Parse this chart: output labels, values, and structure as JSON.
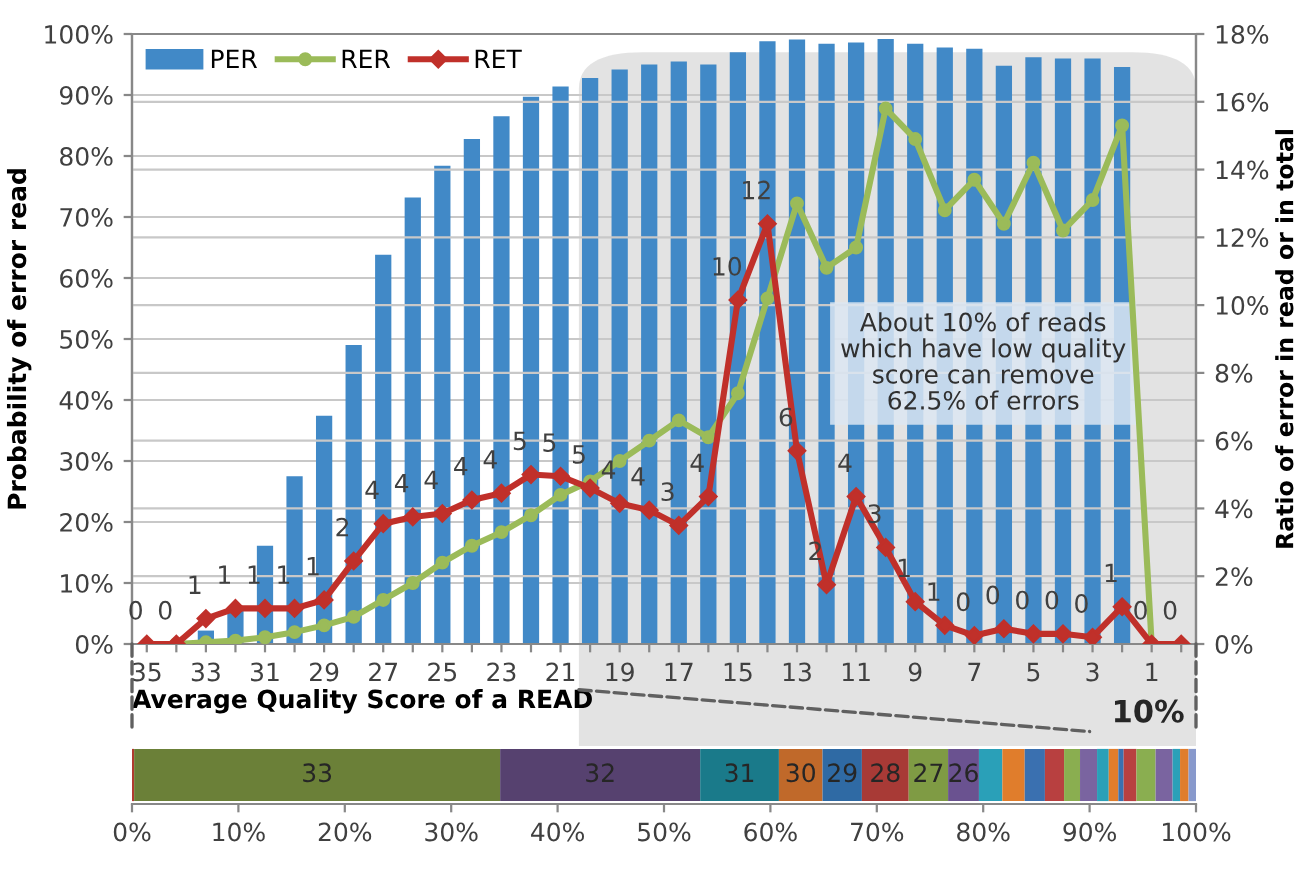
{
  "chart_data": [
    {
      "type": "bar",
      "xlabel": "Average Quality Score of a READ",
      "ylabel": "Probability of error read",
      "y2label": "Ratio of error in read or in total",
      "categories": [
        "35",
        null,
        "33",
        null,
        "31",
        null,
        "29",
        null,
        "27",
        null,
        "25",
        null,
        "23",
        null,
        "21",
        null,
        "19",
        null,
        "17",
        null,
        "15",
        null,
        "13",
        null,
        "11",
        null,
        "9",
        null,
        "7",
        null,
        "5",
        null,
        "3",
        null,
        "1",
        null
      ],
      "series": [
        {
          "name": "PER",
          "type": "bar",
          "color": "#4189c7",
          "values": [
            null,
            null,
            2.2,
            5.4,
            16.1,
            27.5,
            37.4,
            49,
            63.8,
            73.2,
            78.4,
            82.8,
            86.5,
            89.7,
            91.4,
            92.8,
            94.2,
            95.0,
            95.5,
            95.0,
            97.0,
            98.8,
            99.1,
            98.4,
            98.6,
            99.2,
            98.4,
            97.8,
            97.6,
            94.8,
            96.2,
            96.0,
            96.0,
            94.6,
            null,
            null
          ]
        },
        {
          "name": "RER",
          "type": "line",
          "axis": "y2",
          "color": "#9bbb59",
          "marker": "circle",
          "values": [
            null,
            0,
            0.05,
            0.1,
            0.2,
            0.35,
            0.55,
            0.8,
            1.3,
            1.8,
            2.4,
            2.9,
            3.3,
            3.8,
            4.4,
            4.8,
            5.4,
            6.0,
            6.6,
            6.1,
            7.4,
            10.2,
            13.0,
            11.1,
            11.7,
            15.8,
            14.9,
            12.8,
            13.7,
            12.4,
            14.2,
            12.2,
            13.1,
            15.3,
            0,
            null
          ]
        },
        {
          "name": "RET",
          "type": "line",
          "axis": "y2",
          "color": "#c0302a",
          "marker": "diamond",
          "values": [
            0,
            0,
            0.75,
            1.05,
            1.05,
            1.05,
            1.3,
            2.45,
            3.55,
            3.75,
            3.85,
            4.25,
            4.45,
            5.0,
            4.95,
            4.6,
            4.15,
            3.95,
            3.5,
            4.35,
            10.15,
            12.4,
            5.7,
            1.75,
            4.35,
            2.85,
            1.25,
            0.55,
            0.25,
            0.45,
            0.3,
            0.3,
            0.2,
            1.1,
            0,
            0
          ],
          "value_labels": [
            "0",
            "0",
            "1",
            "1",
            "1",
            "1",
            "1",
            "2",
            "4",
            "4",
            "4",
            "4",
            "4",
            "5",
            "5",
            "5",
            "4",
            "4",
            "3",
            "4",
            "10",
            "12",
            "6",
            "2",
            "4",
            "3",
            "1",
            "1",
            "0",
            "0",
            "0",
            "0",
            "0",
            "1",
            "0",
            "0"
          ]
        }
      ],
      "ylim": [
        0,
        100
      ],
      "yticks": [
        {
          "value": 0,
          "label": "0%"
        },
        {
          "value": 10,
          "label": "10%"
        },
        {
          "value": 20,
          "label": "20%"
        },
        {
          "value": 30,
          "label": "30%"
        },
        {
          "value": 40,
          "label": "40%"
        },
        {
          "value": 50,
          "label": "50%"
        },
        {
          "value": 60,
          "label": "60%"
        },
        {
          "value": 70,
          "label": "70%"
        },
        {
          "value": 80,
          "label": "80%"
        },
        {
          "value": 90,
          "label": "90%"
        },
        {
          "value": 100,
          "label": "100%"
        }
      ],
      "y2lim": [
        0,
        18
      ],
      "y2ticks": [
        {
          "value": 0,
          "label": "0%"
        },
        {
          "value": 2,
          "label": "2%"
        },
        {
          "value": 4,
          "label": "4%"
        },
        {
          "value": 6,
          "label": "6%"
        },
        {
          "value": 8,
          "label": "8%"
        },
        {
          "value": 10,
          "label": "10%"
        },
        {
          "value": 12,
          "label": "12%"
        },
        {
          "value": 14,
          "label": "14%"
        },
        {
          "value": 16,
          "label": "16%"
        },
        {
          "value": 18,
          "label": "18%"
        }
      ],
      "grid": "y",
      "legend": "top left",
      "annotations": [
        "About 10% of reads\nwhich have low quality\nscore can remove\n62.5% of errors"
      ]
    },
    {
      "type": "bar",
      "orientation": "horizontal",
      "stacked": true,
      "categories": [
        null
      ],
      "series": [
        {
          "color": "#b03a30",
          "values": [
            0.2
          ]
        },
        {
          "name": "33",
          "color": "#6b8038",
          "values": [
            34.4
          ]
        },
        {
          "name": "32",
          "color": "#56416f",
          "values": [
            18.8
          ]
        },
        {
          "name": "31",
          "color": "#1a7a8a",
          "values": [
            7.4
          ]
        },
        {
          "name": "30",
          "color": "#c0692a",
          "values": [
            4.1
          ]
        },
        {
          "name": "29",
          "color": "#2f6aa4",
          "values": [
            3.7
          ]
        },
        {
          "name": "28",
          "color": "#a83a36",
          "values": [
            4.4
          ]
        },
        {
          "name": "27",
          "color": "#7f9b44",
          "values": [
            3.7
          ]
        },
        {
          "name": "26",
          "color": "#6a5290",
          "values": [
            2.9
          ]
        },
        {
          "color": "#2aa0b8",
          "values": [
            2.2
          ]
        },
        {
          "color": "#e07d2c",
          "values": [
            2.1
          ]
        },
        {
          "color": "#3a70b0",
          "values": [
            1.9
          ]
        },
        {
          "color": "#b84040",
          "values": [
            1.8
          ]
        },
        {
          "color": "#8aae50",
          "values": [
            1.5
          ]
        },
        {
          "color": "#7a64a0",
          "values": [
            1.6
          ]
        },
        {
          "color": "#2aa0b8",
          "values": [
            1.1
          ]
        },
        {
          "color": "#e07d2c",
          "values": [
            0.9
          ]
        },
        {
          "color": "#3a70b0",
          "values": [
            0.5
          ]
        },
        {
          "color": "#b84040",
          "values": [
            1.2
          ]
        },
        {
          "color": "#8aae50",
          "values": [
            1.8
          ]
        },
        {
          "color": "#7a64a0",
          "values": [
            1.6
          ]
        },
        {
          "color": "#2aa0b8",
          "values": [
            0.7
          ]
        },
        {
          "color": "#e07d2c",
          "values": [
            0.8
          ]
        },
        {
          "color": "#8899cc",
          "values": [
            0.7
          ]
        }
      ],
      "xlim": [
        0,
        100
      ],
      "xticks": [
        {
          "value": 0,
          "label": "0%"
        },
        {
          "value": 10,
          "label": "10%"
        },
        {
          "value": 20,
          "label": "20%"
        },
        {
          "value": 30,
          "label": "30%"
        },
        {
          "value": 40,
          "label": "40%"
        },
        {
          "value": 50,
          "label": "50%"
        },
        {
          "value": 60,
          "label": "60%"
        },
        {
          "value": 70,
          "label": "70%"
        },
        {
          "value": 80,
          "label": "80%"
        },
        {
          "value": 90,
          "label": "90%"
        },
        {
          "value": 100,
          "label": "100%"
        }
      ],
      "tick_labels": "x",
      "annotations": [
        "10%"
      ]
    }
  ]
}
